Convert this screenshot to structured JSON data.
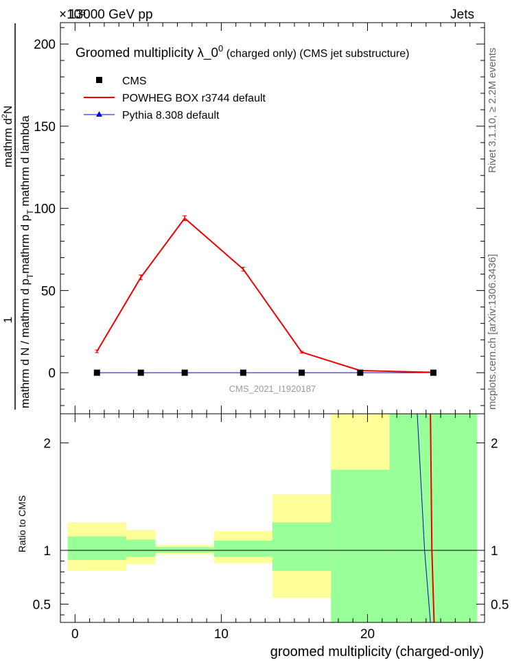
{
  "header": {
    "exponent_label": "×10³",
    "energy_label": "13000 GeV pp",
    "process_label": "Jets"
  },
  "side_text": {
    "rivet": "Rivet 3.1.10, ≥ 2.2M events",
    "mcplots": "mcplots.cern.ch [arXiv:1306.3436]"
  },
  "watermark": "CMS_2021_I1920187",
  "colors": {
    "cms": "#000000",
    "powheg": "#ee0000",
    "pythia": "#0000cc",
    "band_yellow": "#ffff99",
    "band_green": "#99ff99"
  },
  "chart_data": [
    {
      "type": "line",
      "title": "Groomed multiplicity  λ_0⁰ (charged only) (CMS jet substructure)",
      "title_main": "Groomed multiplicity  λ_0",
      "title_sup": "0",
      "title_rest": " (charged only) (CMS jet substructure)",
      "ylabel_numer": "1",
      "ylabel_denom": "mathrm d N / mathrm d p_T mathrm d p_T mathrm d lambda",
      "ylabel_numer_full": "mathrm d²N",
      "ylabel_numer_text": "mathrm d",
      "ylabel_numer_sup": "2",
      "ylabel_numer_end": "N",
      "ylabel_denom_a": "mathrm d N / mathrm d p",
      "ylabel_denom_sub1": "T",
      "ylabel_denom_b": "mathrm d p",
      "ylabel_denom_sub2": "T",
      "ylabel_denom_c": " mathrm d lambda",
      "xlim": [
        -1,
        28
      ],
      "ylim": [
        -25,
        213
      ],
      "y_scale_note": "×10³",
      "yticks": [
        0,
        50,
        100,
        150,
        200
      ],
      "grid": false,
      "legend_placement": "top-left",
      "series": [
        {
          "name": "CMS",
          "style": "markers",
          "x": [
            1.5,
            4.5,
            7.5,
            11.5,
            15.5,
            19.5,
            24.5
          ],
          "y": [
            0,
            0,
            0,
            0,
            0,
            0,
            0
          ]
        },
        {
          "name": "POWHEG BOX r3744 default",
          "style": "line",
          "x": [
            1.5,
            4.5,
            7.5,
            11.5,
            15.5,
            19.5,
            24.5
          ],
          "y": [
            13,
            58,
            94,
            63,
            12.5,
            1.3,
            0.2
          ],
          "yerr": [
            0.8,
            1.5,
            1.5,
            1.2,
            0.5,
            0.2,
            0.1
          ]
        },
        {
          "name": "Pythia 8.308 default",
          "style": "line-triangle",
          "x": [
            1.5,
            4.5,
            7.5,
            11.5,
            15.5,
            19.5,
            24.5
          ],
          "y": [
            0,
            0,
            0,
            0,
            0,
            0,
            0
          ]
        }
      ]
    },
    {
      "type": "area",
      "ylabel": "Ratio to CMS",
      "xlabel": "groomed multiplicity (charged-only)",
      "xlim": [
        -1,
        28
      ],
      "ylim": [
        0.33,
        2.27
      ],
      "yticks": [
        0.5,
        1,
        2
      ],
      "ytick_labels": [
        "0.5",
        "1",
        "2"
      ],
      "xticks": [
        0,
        10,
        20
      ],
      "xtick_labels": [
        "0",
        "10",
        "20"
      ],
      "bins": [
        {
          "x0": -0.5,
          "x1": 3.5,
          "yellow": [
            0.81,
            1.26
          ],
          "green": [
            0.91,
            1.13
          ]
        },
        {
          "x0": 3.5,
          "x1": 5.5,
          "yellow": [
            0.87,
            1.19
          ],
          "green": [
            0.94,
            1.1
          ]
        },
        {
          "x0": 5.5,
          "x1": 9.5,
          "yellow": [
            0.96,
            1.05
          ],
          "green": [
            0.98,
            1.03
          ]
        },
        {
          "x0": 9.5,
          "x1": 13.5,
          "yellow": [
            0.88,
            1.18
          ],
          "green": [
            0.94,
            1.09
          ]
        },
        {
          "x0": 13.5,
          "x1": 17.5,
          "yellow": [
            0.56,
            1.52
          ],
          "green": [
            0.81,
            1.26
          ]
        },
        {
          "x0": 17.5,
          "x1": 21.5,
          "yellow": [
            0.33,
            2.27
          ],
          "green": [
            0.33,
            1.75
          ]
        },
        {
          "x0": 21.5,
          "x1": 27.5,
          "yellow": [
            0.33,
            2.27
          ],
          "green": [
            0.33,
            2.27
          ]
        }
      ],
      "series": [
        {
          "name": "POWHEG BOX r3744 default",
          "x": [
            24.3,
            24.4,
            24.55
          ],
          "y": [
            2.27,
            1.0,
            0.33
          ]
        },
        {
          "name": "Pythia 8.308 default",
          "x": [
            23.4,
            23.9,
            24.3
          ],
          "y": [
            2.27,
            1.0,
            0.33
          ]
        }
      ]
    }
  ]
}
